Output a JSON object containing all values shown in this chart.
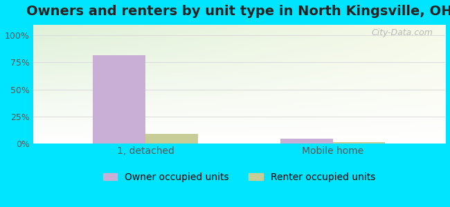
{
  "title": "Owners and renters by unit type in North Kingsville, OH",
  "categories": [
    "1, detached",
    "Mobile home"
  ],
  "owner_values": [
    82,
    4
  ],
  "renter_values": [
    9,
    1
  ],
  "owner_color": "#c9aed6",
  "renter_color": "#c8cc96",
  "bar_width": 0.28,
  "yticks": [
    0,
    25,
    50,
    75,
    100
  ],
  "ytick_labels": [
    "0%",
    "25%",
    "50%",
    "75%",
    "100%"
  ],
  "ylim": [
    0,
    110
  ],
  "xlim": [
    -0.6,
    1.6
  ],
  "xlabel_color": "#555555",
  "title_color": "#222222",
  "legend_owner": "Owner occupied units",
  "legend_renter": "Renter occupied units",
  "bg_outer": "#00e5ff",
  "grid_color": "#dddddd",
  "watermark": "City-Data.com",
  "title_fontsize": 14,
  "tick_fontsize": 9,
  "legend_fontsize": 10,
  "xlabel_fontsize": 10
}
